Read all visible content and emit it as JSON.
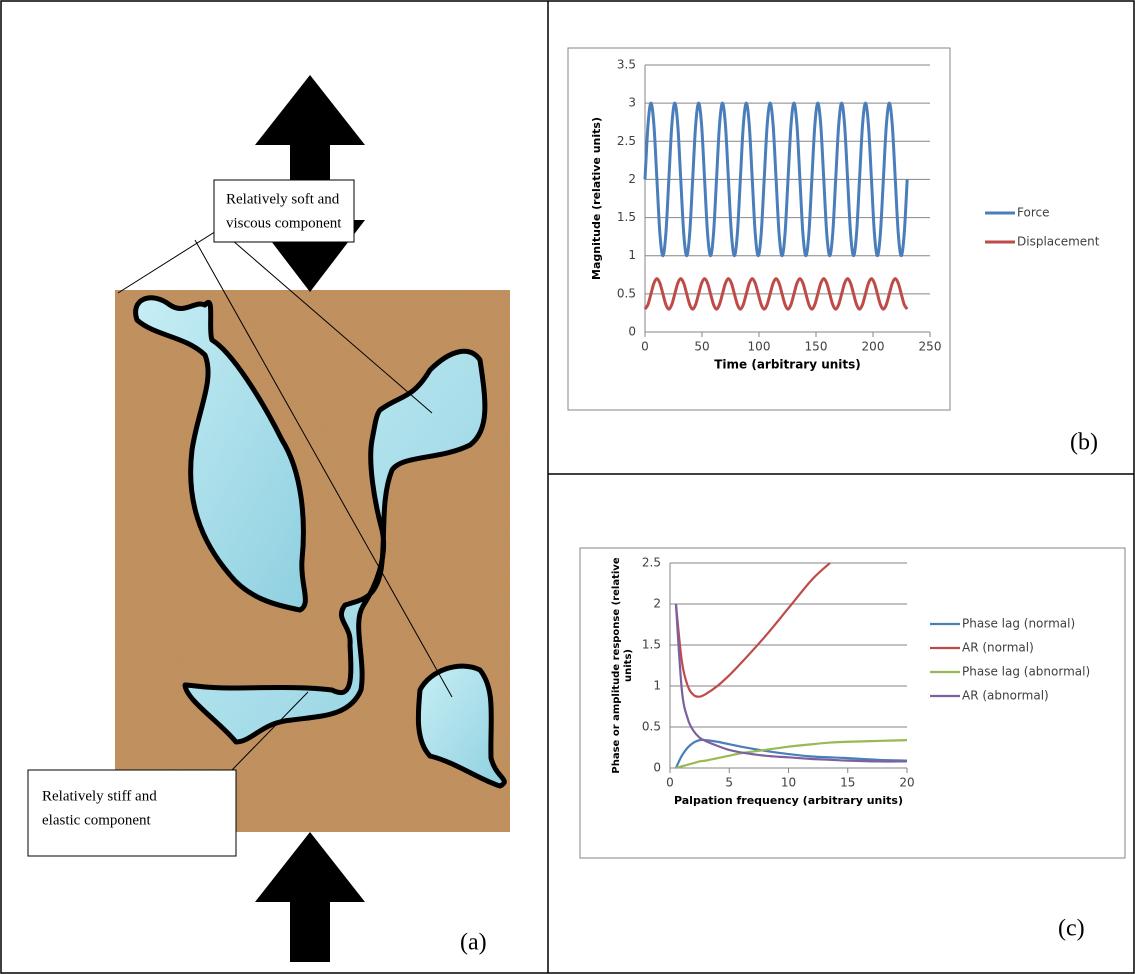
{
  "diagram": {
    "soft_label": [
      "Relatively soft and",
      "viscous component"
    ],
    "stiff_label": [
      "Relatively stiff and",
      "elastic component"
    ]
  },
  "panel_labels": [
    "(a)",
    "(b)",
    "(c)"
  ],
  "chart_data": [
    {
      "type": "line",
      "y_label": "Magnitude (relative units)",
      "x_label": "Time (arbitrary units)",
      "x": [
        0,
        2.61,
        5.23,
        7.84,
        10.45,
        13.07,
        15.68,
        18.3,
        20.91,
        23.52,
        26.14,
        28.75,
        31.36,
        33.98,
        36.59,
        39.2,
        41.82,
        44.43,
        47.05,
        49.66,
        52.27,
        54.89,
        57.5,
        60.11,
        62.73,
        65.34,
        67.95,
        70.57,
        73.18,
        75.8,
        78.41,
        81.02,
        83.64,
        86.25,
        88.86,
        91.48,
        94.09,
        96.7,
        99.32,
        101.93,
        104.55,
        107.16,
        109.77,
        112.39,
        115,
        117.61,
        120.23,
        122.84,
        125.45,
        128.07,
        130.68,
        133.3,
        135.91,
        138.52,
        141.14,
        143.75,
        146.36,
        148.98,
        151.59,
        154.2,
        156.82,
        159.43,
        162.05,
        164.66,
        167.27,
        169.89,
        172.5,
        175.11,
        177.73,
        180.34,
        182.95,
        185.57,
        188.18,
        190.8,
        193.41,
        196.02,
        198.64,
        201.25,
        203.86,
        206.48,
        209.09,
        211.7,
        214.32,
        216.93,
        219.55,
        222.16,
        224.77,
        227.39,
        230
      ],
      "series": [
        {
          "name": "Force",
          "color": "#4a7ebb",
          "values": [
            2,
            2.71,
            3,
            2.71,
            2,
            1.29,
            1,
            1.29,
            2,
            2.71,
            3,
            2.71,
            2,
            1.29,
            1,
            1.29,
            2,
            2.71,
            3,
            2.71,
            2,
            1.29,
            1,
            1.29,
            2,
            2.71,
            3,
            2.71,
            2,
            1.29,
            1,
            1.29,
            2,
            2.71,
            3,
            2.71,
            2,
            1.29,
            1,
            1.29,
            2,
            2.71,
            3,
            2.71,
            2,
            1.29,
            1,
            1.29,
            2,
            2.71,
            3,
            2.71,
            2,
            1.29,
            1,
            1.29,
            2,
            2.71,
            3,
            2.71,
            2,
            1.29,
            1,
            1.29,
            2,
            2.71,
            3,
            2.71,
            2,
            1.29,
            1,
            1.29,
            2,
            2.71,
            3,
            2.71,
            2,
            1.29,
            1,
            1.29,
            2,
            2.71,
            3,
            2.71,
            2,
            1.29,
            1,
            1.29,
            2
          ]
        },
        {
          "name": "Displacement",
          "color": "#be4b48",
          "values": [
            0.3,
            0.36,
            0.5,
            0.64,
            0.7,
            0.64,
            0.5,
            0.36,
            0.3,
            0.36,
            0.5,
            0.64,
            0.7,
            0.64,
            0.5,
            0.36,
            0.3,
            0.36,
            0.5,
            0.64,
            0.7,
            0.64,
            0.5,
            0.36,
            0.3,
            0.36,
            0.5,
            0.64,
            0.7,
            0.64,
            0.5,
            0.36,
            0.3,
            0.36,
            0.5,
            0.64,
            0.7,
            0.64,
            0.5,
            0.36,
            0.3,
            0.36,
            0.5,
            0.64,
            0.7,
            0.64,
            0.5,
            0.36,
            0.3,
            0.36,
            0.5,
            0.64,
            0.7,
            0.64,
            0.5,
            0.36,
            0.3,
            0.36,
            0.5,
            0.64,
            0.7,
            0.64,
            0.5,
            0.36,
            0.3,
            0.36,
            0.5,
            0.64,
            0.7,
            0.64,
            0.5,
            0.36,
            0.3,
            0.36,
            0.5,
            0.64,
            0.7,
            0.64,
            0.5,
            0.36,
            0.3,
            0.36,
            0.5,
            0.64,
            0.7,
            0.64,
            0.5,
            0.36,
            0.3
          ]
        }
      ],
      "xlim": [
        0,
        250
      ],
      "xticks": [
        0,
        50,
        100,
        150,
        200,
        250
      ],
      "ylim": [
        0,
        3.5
      ],
      "yticks": [
        0,
        0.5,
        1,
        1.5,
        2,
        2.5,
        3,
        3.5
      ],
      "grid": true,
      "legend": "right"
    },
    {
      "type": "line",
      "y_label": "Phase or amplitude response (relative units)",
      "x_label": "Palpation frequency (arbitrary units)",
      "x": [
        0.5,
        1,
        1.5,
        2,
        2.5,
        3,
        4,
        5,
        6,
        8,
        10,
        12,
        13.5,
        15,
        17.5,
        20
      ],
      "series": [
        {
          "name": "Phase lag (normal)",
          "color": "#4a7ebb",
          "values": [
            0,
            0.15,
            0.25,
            0.31,
            0.34,
            0.34,
            0.32,
            0.29,
            0.26,
            0.21,
            0.17,
            0.14,
            0.13,
            0.12,
            0.1,
            0.09
          ]
        },
        {
          "name": "AR (normal)",
          "color": "#be4b48",
          "values": [
            2,
            1.3,
            1.0,
            0.89,
            0.87,
            0.9,
            1.0,
            1.13,
            1.28,
            1.6,
            1.95,
            2.3,
            2.5,
            null,
            null,
            null
          ]
        },
        {
          "name": "Phase lag (abnormal)",
          "color": "#98b954",
          "values": [
            0,
            0.02,
            0.04,
            0.06,
            0.08,
            0.09,
            0.12,
            0.15,
            0.18,
            0.22,
            0.26,
            0.29,
            0.31,
            0.32,
            0.33,
            0.34
          ]
        },
        {
          "name": "AR (abnormal)",
          "color": "#7d60a0",
          "values": [
            2,
            0.95,
            0.6,
            0.45,
            0.37,
            0.33,
            0.27,
            0.22,
            0.19,
            0.15,
            0.13,
            0.11,
            0.1,
            0.09,
            0.08,
            0.08
          ]
        }
      ],
      "xlim": [
        0,
        20
      ],
      "xticks": [
        0,
        5,
        10,
        15,
        20
      ],
      "ylim": [
        0,
        2.5
      ],
      "yticks": [
        0,
        0.5,
        1,
        1.5,
        2,
        2.5
      ],
      "grid": true,
      "legend": "right"
    }
  ]
}
